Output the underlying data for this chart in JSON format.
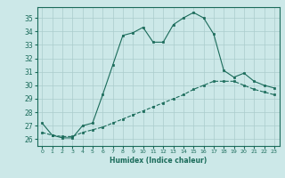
{
  "title": "",
  "xlabel": "Humidex (Indice chaleur)",
  "background_color": "#cce8e8",
  "line_color": "#1a6b5a",
  "grid_color": "#aacccc",
  "xlim": [
    -0.5,
    23.5
  ],
  "ylim": [
    25.5,
    35.8
  ],
  "yticks": [
    26,
    27,
    28,
    29,
    30,
    31,
    32,
    33,
    34,
    35
  ],
  "xticks": [
    0,
    1,
    2,
    3,
    4,
    5,
    6,
    7,
    8,
    9,
    10,
    11,
    12,
    13,
    14,
    15,
    16,
    17,
    18,
    19,
    20,
    21,
    22,
    23
  ],
  "series1_x": [
    0,
    1,
    2,
    3,
    4,
    5,
    6,
    7,
    8,
    9,
    10,
    11,
    12,
    13,
    14,
    15,
    16,
    17,
    18,
    19,
    20,
    21,
    22,
    23
  ],
  "series1_y": [
    27.2,
    26.3,
    26.1,
    26.1,
    27.0,
    27.2,
    29.3,
    31.5,
    33.7,
    33.9,
    34.3,
    33.2,
    33.2,
    34.5,
    35.0,
    35.4,
    35.0,
    33.8,
    31.1,
    30.6,
    30.9,
    30.3,
    30.0,
    29.8
  ],
  "series2_x": [
    0,
    1,
    2,
    3,
    4,
    5,
    6,
    7,
    8,
    9,
    10,
    11,
    12,
    13,
    14,
    15,
    16,
    17,
    18,
    19,
    20,
    21,
    22,
    23
  ],
  "series2_y": [
    26.5,
    26.3,
    26.2,
    26.2,
    26.5,
    26.7,
    26.9,
    27.2,
    27.5,
    27.8,
    28.1,
    28.4,
    28.7,
    29.0,
    29.3,
    29.7,
    30.0,
    30.3,
    30.3,
    30.3,
    30.0,
    29.7,
    29.5,
    29.3
  ]
}
